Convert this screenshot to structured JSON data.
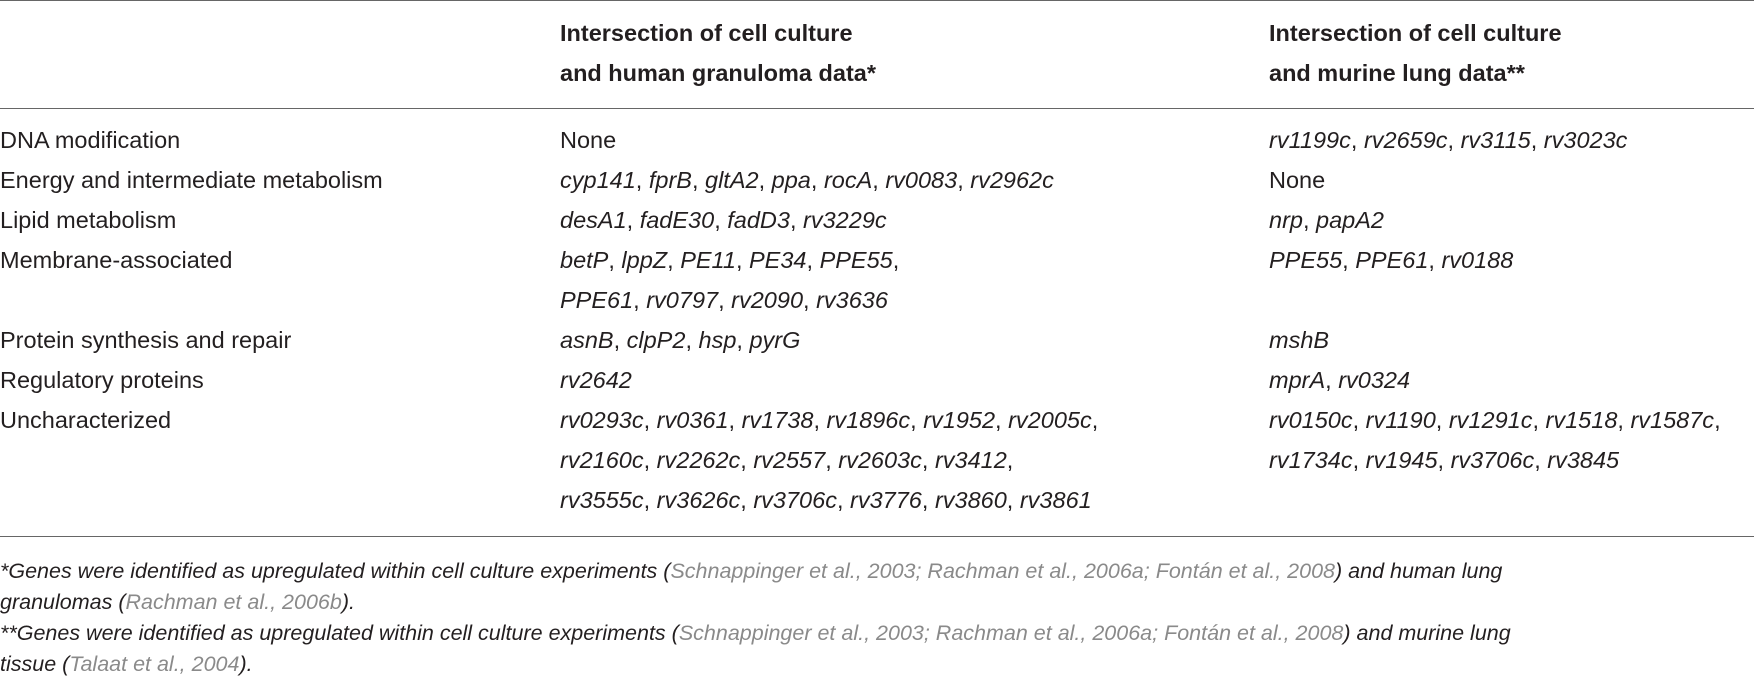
{
  "header": {
    "col1_line1": "Intersection of cell culture",
    "col1_line2": "and human granuloma data*",
    "col2_line1": "Intersection of cell culture",
    "col2_line2": "and murine lung data**"
  },
  "rows": [
    {
      "category": "DNA modification",
      "col1": [
        [
          "None"
        ]
      ],
      "col1_italic": false,
      "col2": [
        [
          "rv1199c",
          "rv2659c",
          "rv3115",
          "rv3023c"
        ]
      ],
      "col2_italic": true
    },
    {
      "category": "Energy and intermediate metabolism",
      "col1": [
        [
          "cyp141",
          "fprB",
          "gltA2",
          "ppa",
          "rocA",
          "rv0083",
          "rv2962c"
        ]
      ],
      "col1_italic": true,
      "col2": [
        [
          "None"
        ]
      ],
      "col2_italic": false
    },
    {
      "category": "Lipid metabolism",
      "col1": [
        [
          "desA1",
          "fadE30",
          "fadD3",
          "rv3229c"
        ]
      ],
      "col1_italic": true,
      "col2": [
        [
          "nrp",
          "papA2"
        ]
      ],
      "col2_italic": true
    },
    {
      "category": "Membrane-associated",
      "col1": [
        [
          "betP",
          "lppZ",
          "PE11",
          "PE34",
          "PPE55",
          ""
        ],
        [
          "PPE61",
          "rv0797",
          "rv2090",
          "rv3636"
        ]
      ],
      "col1_italic": true,
      "col2": [
        [
          "PPE55",
          "PPE61",
          "rv0188"
        ]
      ],
      "col2_italic": true
    },
    {
      "category": "Protein synthesis and repair",
      "col1": [
        [
          "asnB",
          "clpP2",
          "hsp",
          "pyrG"
        ]
      ],
      "col1_italic": true,
      "col2": [
        [
          "mshB"
        ]
      ],
      "col2_italic": true
    },
    {
      "category": "Regulatory proteins",
      "col1": [
        [
          "rv2642"
        ]
      ],
      "col1_italic": true,
      "col2": [
        [
          "mprA",
          "rv0324"
        ]
      ],
      "col2_italic": true
    },
    {
      "category": "Uncharacterized",
      "col1": [
        [
          "rv0293c",
          "rv0361",
          "rv1738",
          "rv1896c",
          "rv1952",
          "rv2005c",
          ""
        ],
        [
          "rv2160c",
          "rv2262c",
          "rv2557",
          "rv2603c",
          "rv3412",
          ""
        ],
        [
          "rv3555c",
          "rv3626c",
          "rv3706c",
          "rv3776",
          "rv3860",
          "rv3861"
        ]
      ],
      "col1_italic": true,
      "col2": [
        [
          "rv0150c",
          "rv1190",
          "rv1291c",
          "rv1518",
          "rv1587c",
          ""
        ],
        [
          "rv1734c",
          "rv1945",
          "rv3706c",
          "rv3845"
        ]
      ],
      "col2_italic": true
    }
  ],
  "footnotes": {
    "note1_line1_pre": "*Genes were identified as upregulated within cell culture experiments (",
    "note1_line1_cite": "Schnappinger et al., 2003; Rachman et al., 2006a; Fontán et al., 2008",
    "note1_line1_post": ") and human lung",
    "note1_line2_pre": "granulomas (",
    "note1_line2_cite": "Rachman et al., 2006b",
    "note1_line2_post": ").",
    "note2_line1_pre": "**Genes were identified as upregulated within cell culture experiments (",
    "note2_line1_cite": "Schnappinger et al., 2003; Rachman et al., 2006a; Fontán et al., 2008",
    "note2_line1_post": ") and murine lung",
    "note2_line2_pre": "tissue (",
    "note2_line2_cite": "Talaat et al., 2004",
    "note2_line2_post": ")."
  }
}
